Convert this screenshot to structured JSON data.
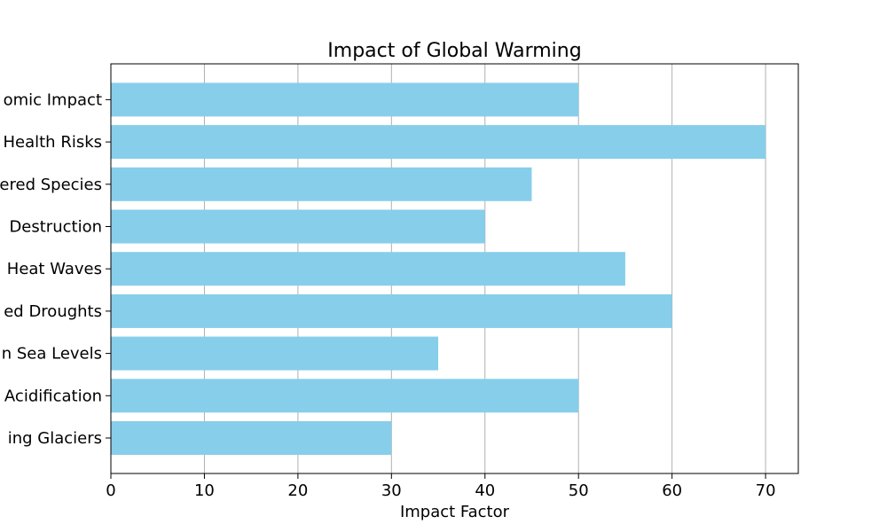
{
  "chart_data": {
    "type": "bar",
    "orientation": "horizontal",
    "title": "Impact of Global Warming",
    "xlabel": "Impact Factor",
    "ylabel": "",
    "categories": [
      "Melting Glaciers",
      "Ocean Acidification",
      "Rising Sea Levels",
      "Increased Droughts",
      "Heat Waves",
      "Habitat Destruction",
      "Endangered Species",
      "Health Risks",
      "Economic Impact"
    ],
    "category_labels_shown": [
      "ing Glaciers",
      "Acidification",
      "n Sea Levels",
      "ed Droughts",
      "Heat Waves",
      " Destruction",
      "ered Species",
      "Health Risks",
      "omic Impact"
    ],
    "values": [
      30,
      50,
      35,
      60,
      55,
      40,
      45,
      70,
      50
    ],
    "xlim": [
      0,
      73.5
    ],
    "xticks": [
      0,
      10,
      20,
      30,
      40,
      50,
      60,
      70
    ],
    "grid": "vertical",
    "bar_color": "#87ceeb",
    "grid_color": "#b0b0b0"
  }
}
